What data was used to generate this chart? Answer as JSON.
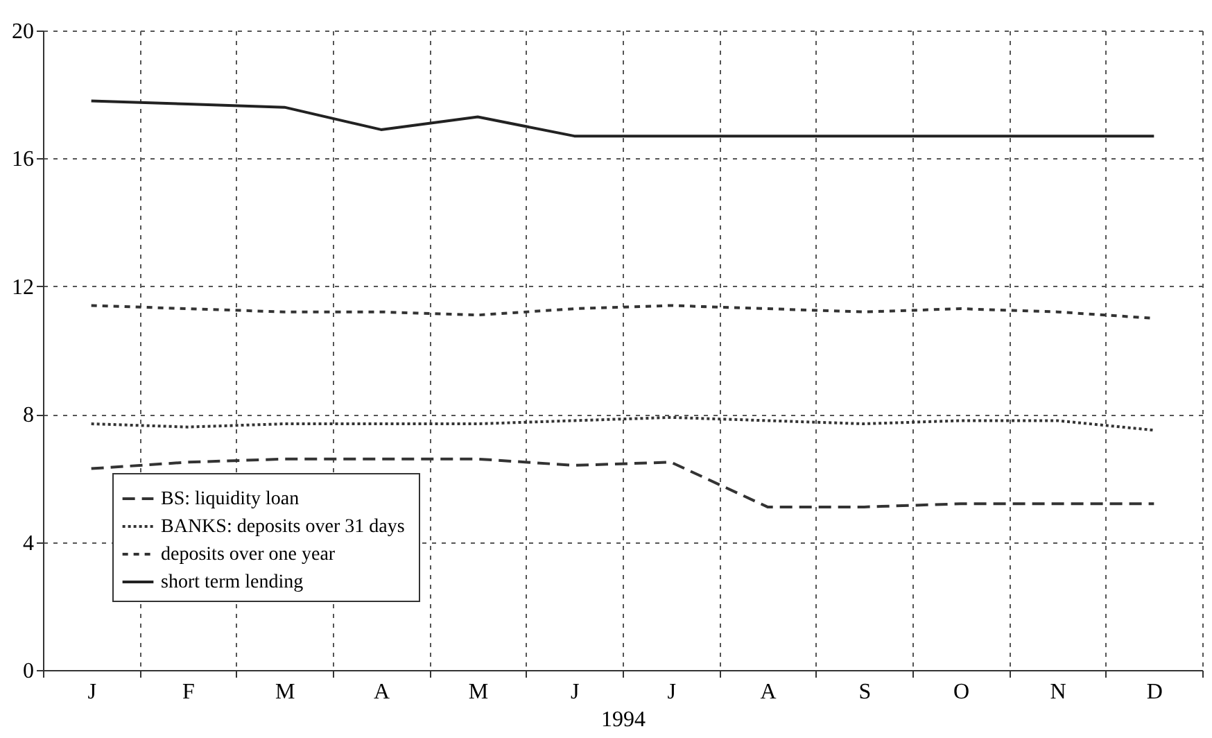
{
  "chart_data": {
    "type": "line",
    "xlabel": "1994",
    "categories": [
      "J",
      "F",
      "M",
      "A",
      "M",
      "J",
      "J",
      "A",
      "S",
      "O",
      "N",
      "D"
    ],
    "ylim": [
      0,
      20
    ],
    "yticks": [
      0,
      4,
      8,
      12,
      16,
      20
    ],
    "grid": true,
    "legend": "bottom left",
    "series": [
      {
        "name": "BS: liquidity loan",
        "color": "#333333",
        "line_style": "dashed",
        "values": [
          6.3,
          6.5,
          6.6,
          6.6,
          6.6,
          6.4,
          6.5,
          5.1,
          5.1,
          5.2,
          5.2,
          5.2
        ]
      },
      {
        "name": "BANKS:  deposits over 31 days",
        "color": "#333333",
        "line_style": "dotted",
        "values": [
          7.7,
          7.6,
          7.7,
          7.7,
          7.7,
          7.8,
          7.9,
          7.8,
          7.7,
          7.8,
          7.8,
          7.5
        ]
      },
      {
        "name": "deposits over one year",
        "color": "#333333",
        "line_style": "dashed",
        "values": [
          11.4,
          11.3,
          11.2,
          11.2,
          11.1,
          11.3,
          11.4,
          11.3,
          11.2,
          11.3,
          11.2,
          11.0
        ]
      },
      {
        "name": "short term lending",
        "color": "#222222",
        "line_style": "solid",
        "values": [
          17.8,
          17.7,
          17.6,
          16.9,
          17.3,
          16.7,
          16.7,
          16.7,
          16.7,
          16.7,
          16.7,
          16.7
        ]
      }
    ]
  }
}
